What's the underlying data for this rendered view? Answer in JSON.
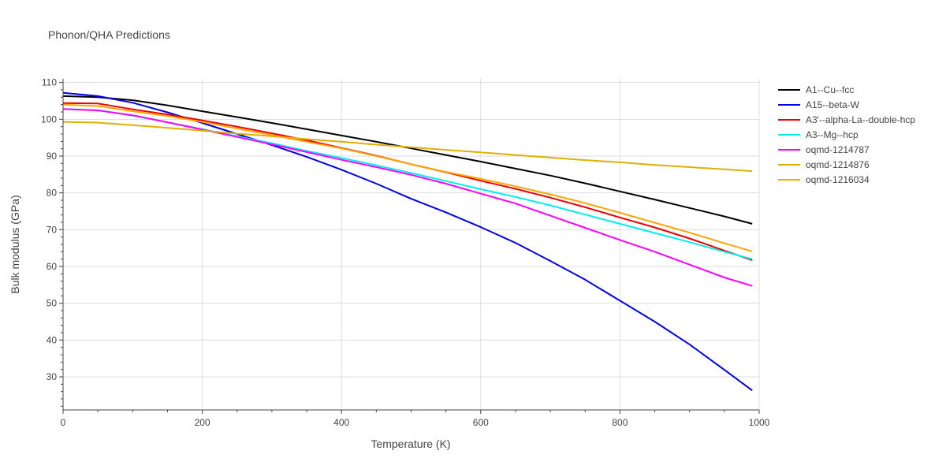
{
  "title": "Phonon/QHA Predictions",
  "chart_data": {
    "type": "line",
    "title": "Phonon/QHA Predictions",
    "xlabel": "Temperature (K)",
    "ylabel": "Bulk modulus (GPa)",
    "xlim": [
      0,
      1000
    ],
    "ylim": [
      21,
      111
    ],
    "x_ticks": [
      0,
      200,
      400,
      600,
      800,
      1000
    ],
    "y_ticks": [
      30,
      40,
      50,
      60,
      70,
      80,
      90,
      100,
      110
    ],
    "grid": true,
    "legend_position": "right",
    "x": [
      0,
      50,
      100,
      150,
      200,
      250,
      300,
      350,
      400,
      450,
      500,
      550,
      600,
      650,
      700,
      750,
      800,
      850,
      900,
      950,
      990
    ],
    "series": [
      {
        "name": "A1--Cu--fcc",
        "color": "#000000",
        "values": [
          106.3,
          106.0,
          105.2,
          103.8,
          102.2,
          100.6,
          99.0,
          97.3,
          95.6,
          93.9,
          92.1,
          90.3,
          88.5,
          86.6,
          84.7,
          82.6,
          80.4,
          78.2,
          75.9,
          73.6,
          71.6
        ]
      },
      {
        "name": "A15--beta-W",
        "color": "#0000ee",
        "values": [
          107.2,
          106.3,
          104.5,
          101.9,
          99.0,
          96.0,
          93.0,
          89.8,
          86.3,
          82.5,
          78.4,
          74.7,
          70.7,
          66.4,
          61.5,
          56.4,
          50.7,
          45.0,
          38.8,
          31.9,
          26.3
        ]
      },
      {
        "name": "A3'--alpha-La--double-hcp",
        "color": "#ee0000",
        "values": [
          104.4,
          104.3,
          102.7,
          101.3,
          99.7,
          98.0,
          96.2,
          94.3,
          92.2,
          90.1,
          87.8,
          85.6,
          83.3,
          81.1,
          78.7,
          76.1,
          73.3,
          70.6,
          67.6,
          64.3,
          61.7
        ]
      },
      {
        "name": "A3--Mg--hcp",
        "color": "#00eeee",
        "values": [
          102.8,
          102.5,
          101.0,
          99.2,
          97.3,
          95.4,
          93.5,
          91.4,
          89.5,
          87.5,
          85.4,
          83.2,
          81.0,
          78.9,
          76.6,
          74.1,
          71.6,
          69.1,
          66.6,
          64.0,
          62.0
        ]
      },
      {
        "name": "oqmd-1214787",
        "color": "#ff00ff",
        "values": [
          102.8,
          102.4,
          101.1,
          99.2,
          97.2,
          95.2,
          93.2,
          91.1,
          89.0,
          87.0,
          84.9,
          82.5,
          79.8,
          77.1,
          73.8,
          70.5,
          67.2,
          64.0,
          60.5,
          57.0,
          54.7
        ]
      },
      {
        "name": "oqmd-1214876",
        "color": "#e0b000",
        "values": [
          99.3,
          99.1,
          98.4,
          97.7,
          96.9,
          96.1,
          95.4,
          94.6,
          93.9,
          93.1,
          92.4,
          91.7,
          91.0,
          90.3,
          89.6,
          88.9,
          88.3,
          87.6,
          87.0,
          86.4,
          85.9
        ]
      },
      {
        "name": "oqmd-1216034",
        "color": "#ffa500",
        "values": [
          104.0,
          103.6,
          102.2,
          100.9,
          99.3,
          97.5,
          95.7,
          93.9,
          92.1,
          90.0,
          87.8,
          85.7,
          83.8,
          81.8,
          79.6,
          77.2,
          74.6,
          71.9,
          69.2,
          66.3,
          64.1
        ]
      }
    ]
  }
}
